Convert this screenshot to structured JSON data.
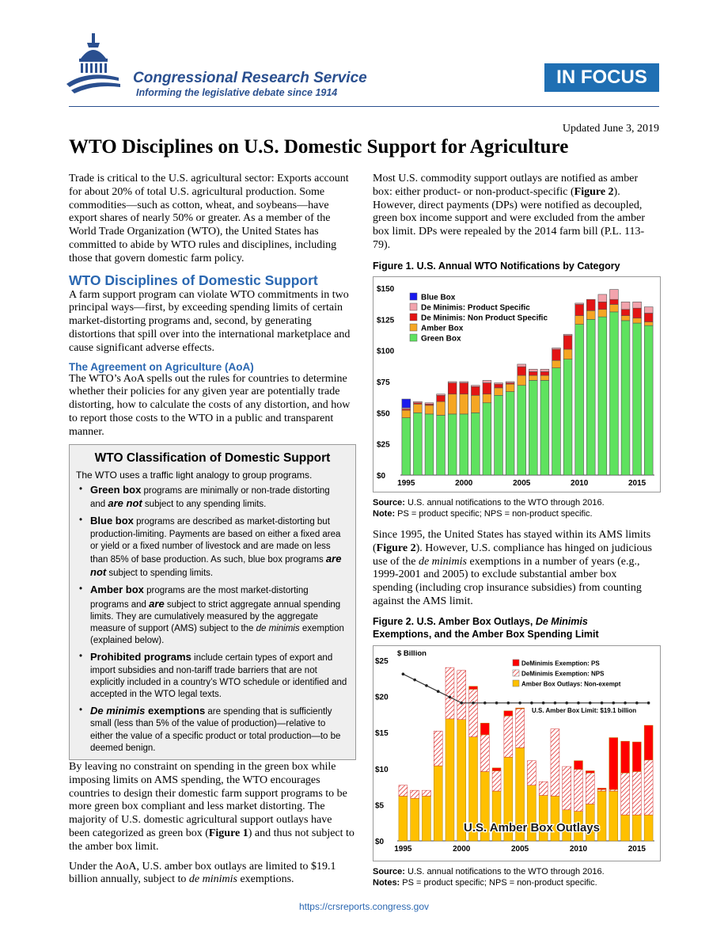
{
  "header": {
    "org_name": "Congressional Research Service",
    "org_tagline": "Informing the legislative debate since 1914",
    "badge": "IN FOCUS",
    "updated": "Updated June 3, 2019",
    "title": "WTO Disciplines on U.S. Domestic Support for Agriculture"
  },
  "left": {
    "intro": "Trade is critical to the U.S. agricultural sector: Exports account for about 20% of total U.S. agricultural production. Some commodities—such as cotton, wheat, and soybeans—have export shares of nearly 50% or greater. As a member of the World Trade Organization (WTO), the United States has committed to abide by WTO rules and disciplines, including those that govern domestic farm policy.",
    "section_title": "WTO Disciplines of Domestic Support",
    "section_para": "A farm support program can violate WTO commitments in two principal ways—first, by exceeding spending limits of certain market-distorting programs and, second, by generating distortions that spill over into the international marketplace and cause significant adverse effects.",
    "aoa_title": "The Agreement on Agriculture (AoA)",
    "aoa_para": "The WTO’s AoA spells out the rules for countries to determine whether their policies for any given year are potentially trade distorting, how to calculate the costs of any distortion, and how to report those costs to the WTO in a public and transparent manner.",
    "para_after1": "By leaving no constraint on spending in the green box while imposing limits on AMS spending, the WTO encourages countries to design their domestic farm support programs to be more green box compliant and less market distorting. The majority of U.S. domestic agricultural support outlays have been categorized as green box (",
    "para_after1_bold": "Figure 1",
    "para_after1_end": ") and thus not subject to the amber box limit.",
    "para_after2": "Under the AoA, U.S. amber box outlays are limited to $19.1 billion annually, subject to ",
    "para_after2_italic": "de minimis",
    "para_after2_end": " exemptions."
  },
  "box": {
    "title": "WTO Classification of Domestic Support",
    "intro": "The WTO uses a traffic light analogy to group programs.",
    "items": [
      {
        "term": "Green box",
        "t1": " programs are minimally or non-trade distorting and ",
        "emph": "are not",
        "t2": " subject to any spending limits."
      },
      {
        "term": "Blue box",
        "t1": " programs are described as market-distorting but production-limiting. Payments are based on either a fixed area or yield or a fixed number of livestock and are made on less than 85% of base production. As such, blue box programs ",
        "emph": "are not",
        "t2": " subject to spending limits."
      },
      {
        "term": "Amber box",
        "t1": " programs are the most market-distorting programs and ",
        "emph": "are",
        "t2": " subject to strict aggregate annual spending limits. They are cumulatively measured by the aggregate measure of support (AMS) subject to the ",
        "emph2": "de minimis",
        "t3": " exemption (explained below)."
      },
      {
        "term": "Prohibited programs",
        "t1": " include certain types of export and import subsidies and non-tariff trade barriers that are not explicitly included in a country’s WTO schedule or identified and accepted in the WTO legal texts."
      },
      {
        "term": "De minimis",
        "term2": " exemptions",
        "t1": " are spending that is sufficiently small (less than 5% of the value of production)—relative to either the value of a specific product or total production—to be deemed benign."
      }
    ]
  },
  "right": {
    "para1_a": "Most U.S. commodity support outlays are notified as amber box: either product- or non-product-specific (",
    "para1_bold": "Figure 2",
    "para1_b": "). However, direct payments (DPs) were notified as decoupled, green box income support and were excluded from the amber box limit. DPs were repealed by the 2014 farm bill (P.L. 113-79).",
    "fig1_title": "Figure 1. U.S. Annual WTO Notifications by Category",
    "fig1_source_label": "Source:",
    "fig1_source": " U.S. annual notifications to the WTO through 2016.",
    "fig1_note_label": "Note:",
    "fig1_note": " PS = product specific; NPS = non-product specific.",
    "para2_a": "Since 1995, the United States has stayed within its AMS limits (",
    "para2_bold": "Figure 2",
    "para2_b": "). However, U.S. compliance has hinged on judicious use of the ",
    "para2_italic": "de minimis",
    "para2_c": " exemptions in a number of years (e.g., 1999-2001 and 2005) to exclude substantial amber box spending (including crop insurance subsidies) from counting against the AMS limit.",
    "fig2_title_a": "Figure 2. U.S. Amber Box Outlays, ",
    "fig2_title_italic": "De Minimis",
    "fig2_title_b": "Exemptions, and the Amber Box Spending Limit",
    "fig2_source_label": "Source:",
    "fig2_source": " U.S. annual notifications to the WTO through 2016.",
    "fig2_note_label": "Notes:",
    "fig2_note": " PS = product specific; NPS = non-product specific."
  },
  "footer": {
    "url": "https://crsreports.congress.gov"
  },
  "chart_data": [
    {
      "type": "bar",
      "stacked": true,
      "ylim": [
        0,
        150
      ],
      "y_ticks": [
        "$0",
        "$25",
        "$50",
        "$75",
        "$100",
        "$125",
        "$150"
      ],
      "x_ticks": [
        "1995",
        "2000",
        "2005",
        "2010",
        "2015"
      ],
      "legend_placement": "top-left",
      "categories": [
        1995,
        1996,
        1997,
        1998,
        1999,
        2000,
        2001,
        2002,
        2003,
        2004,
        2005,
        2006,
        2007,
        2008,
        2009,
        2010,
        2011,
        2012,
        2013,
        2014,
        2015,
        2016
      ],
      "series": [
        {
          "name": "Green Box",
          "color": "#5fe25f",
          "values": [
            46,
            50,
            49,
            48,
            49,
            49,
            50,
            58,
            64,
            67,
            72,
            76,
            76,
            86,
            93,
            121,
            125,
            127,
            131,
            124,
            122,
            120
          ]
        },
        {
          "name": "Amber Box",
          "color": "#f5a623",
          "values": [
            6,
            7,
            7,
            11,
            16,
            16,
            14,
            7,
            6,
            6,
            8,
            4,
            4,
            6,
            8,
            7,
            7,
            6,
            6,
            4,
            4,
            3
          ]
        },
        {
          "name": "De Minimis: Non Product Specific",
          "color": "#e31414",
          "values": [
            1,
            1,
            1,
            5,
            9,
            9,
            7,
            9,
            3,
            1,
            7,
            3,
            3,
            9,
            11,
            9,
            9,
            6,
            4,
            5,
            8,
            7
          ]
        },
        {
          "name": "De Minimis: Product Specific",
          "color": "#f2a3ac",
          "values": [
            1,
            1,
            1,
            1,
            1,
            1,
            1,
            2,
            1,
            1,
            2,
            2,
            2,
            1,
            1,
            1,
            0,
            6,
            8,
            6,
            5,
            5
          ]
        },
        {
          "name": "Blue Box",
          "color": "#1a1aee",
          "values": [
            7,
            0,
            0,
            0,
            0,
            0,
            0,
            0,
            0,
            0,
            0,
            0,
            0,
            0,
            0,
            0,
            0,
            0,
            0,
            0,
            0,
            0
          ]
        }
      ]
    },
    {
      "type": "bar",
      "stacked": true,
      "ylim": [
        0,
        25
      ],
      "y_unit_label": "$ Billion",
      "y_ticks": [
        "$0",
        "$5",
        "$10",
        "$15",
        "$20",
        "$25"
      ],
      "x_ticks": [
        "1995",
        "2000",
        "2005",
        "2010",
        "2015"
      ],
      "legend_placement": "top-right",
      "categories": [
        1995,
        1996,
        1997,
        1998,
        1999,
        2000,
        2001,
        2002,
        2003,
        2004,
        2005,
        2006,
        2007,
        2008,
        2009,
        2010,
        2011,
        2012,
        2013,
        2014,
        2015,
        2016
      ],
      "series": [
        {
          "name": "Amber Box Outlays: Non-exempt",
          "color": "#ffc000",
          "values": [
            6.2,
            5.9,
            6.2,
            10.4,
            16.9,
            16.8,
            14.4,
            9.6,
            6.9,
            11.6,
            12.9,
            7.7,
            6.3,
            6.2,
            4.3,
            4.1,
            5.1,
            6.9,
            6.9,
            3.6,
            3.6,
            3.6
          ]
        },
        {
          "name": "DeMinimis Exemption: NPS",
          "color": "hatched",
          "values": [
            1.5,
            1.1,
            0.8,
            4.8,
            7.1,
            6.8,
            6.6,
            5.1,
            2.8,
            5.7,
            5.4,
            3.4,
            1.9,
            9.3,
            6.0,
            5.8,
            4.3,
            0.2,
            0.2,
            5.8,
            6.0,
            7.6
          ]
        },
        {
          "name": "DeMinimis Exemption: PS",
          "color": "#ff0000",
          "values": [
            0,
            0,
            0,
            0,
            0,
            0,
            0.4,
            1.6,
            0.4,
            0.7,
            0.1,
            0,
            0,
            0,
            0,
            1.2,
            0.3,
            0.2,
            7.2,
            4.4,
            4.1,
            4.8
          ]
        }
      ],
      "limit_line": {
        "label": "U.S. Amber Box Limit: $19.1 billion",
        "values": [
          23.1,
          22.3,
          21.5,
          20.7,
          19.9,
          19.1,
          19.1,
          19.1,
          19.1,
          19.1,
          19.1,
          19.1,
          19.1,
          19.1,
          19.1,
          19.1,
          19.1,
          19.1,
          19.1,
          19.1,
          19.1,
          19.1
        ]
      },
      "annotation": "U.S. Amber Box Outlays"
    }
  ]
}
